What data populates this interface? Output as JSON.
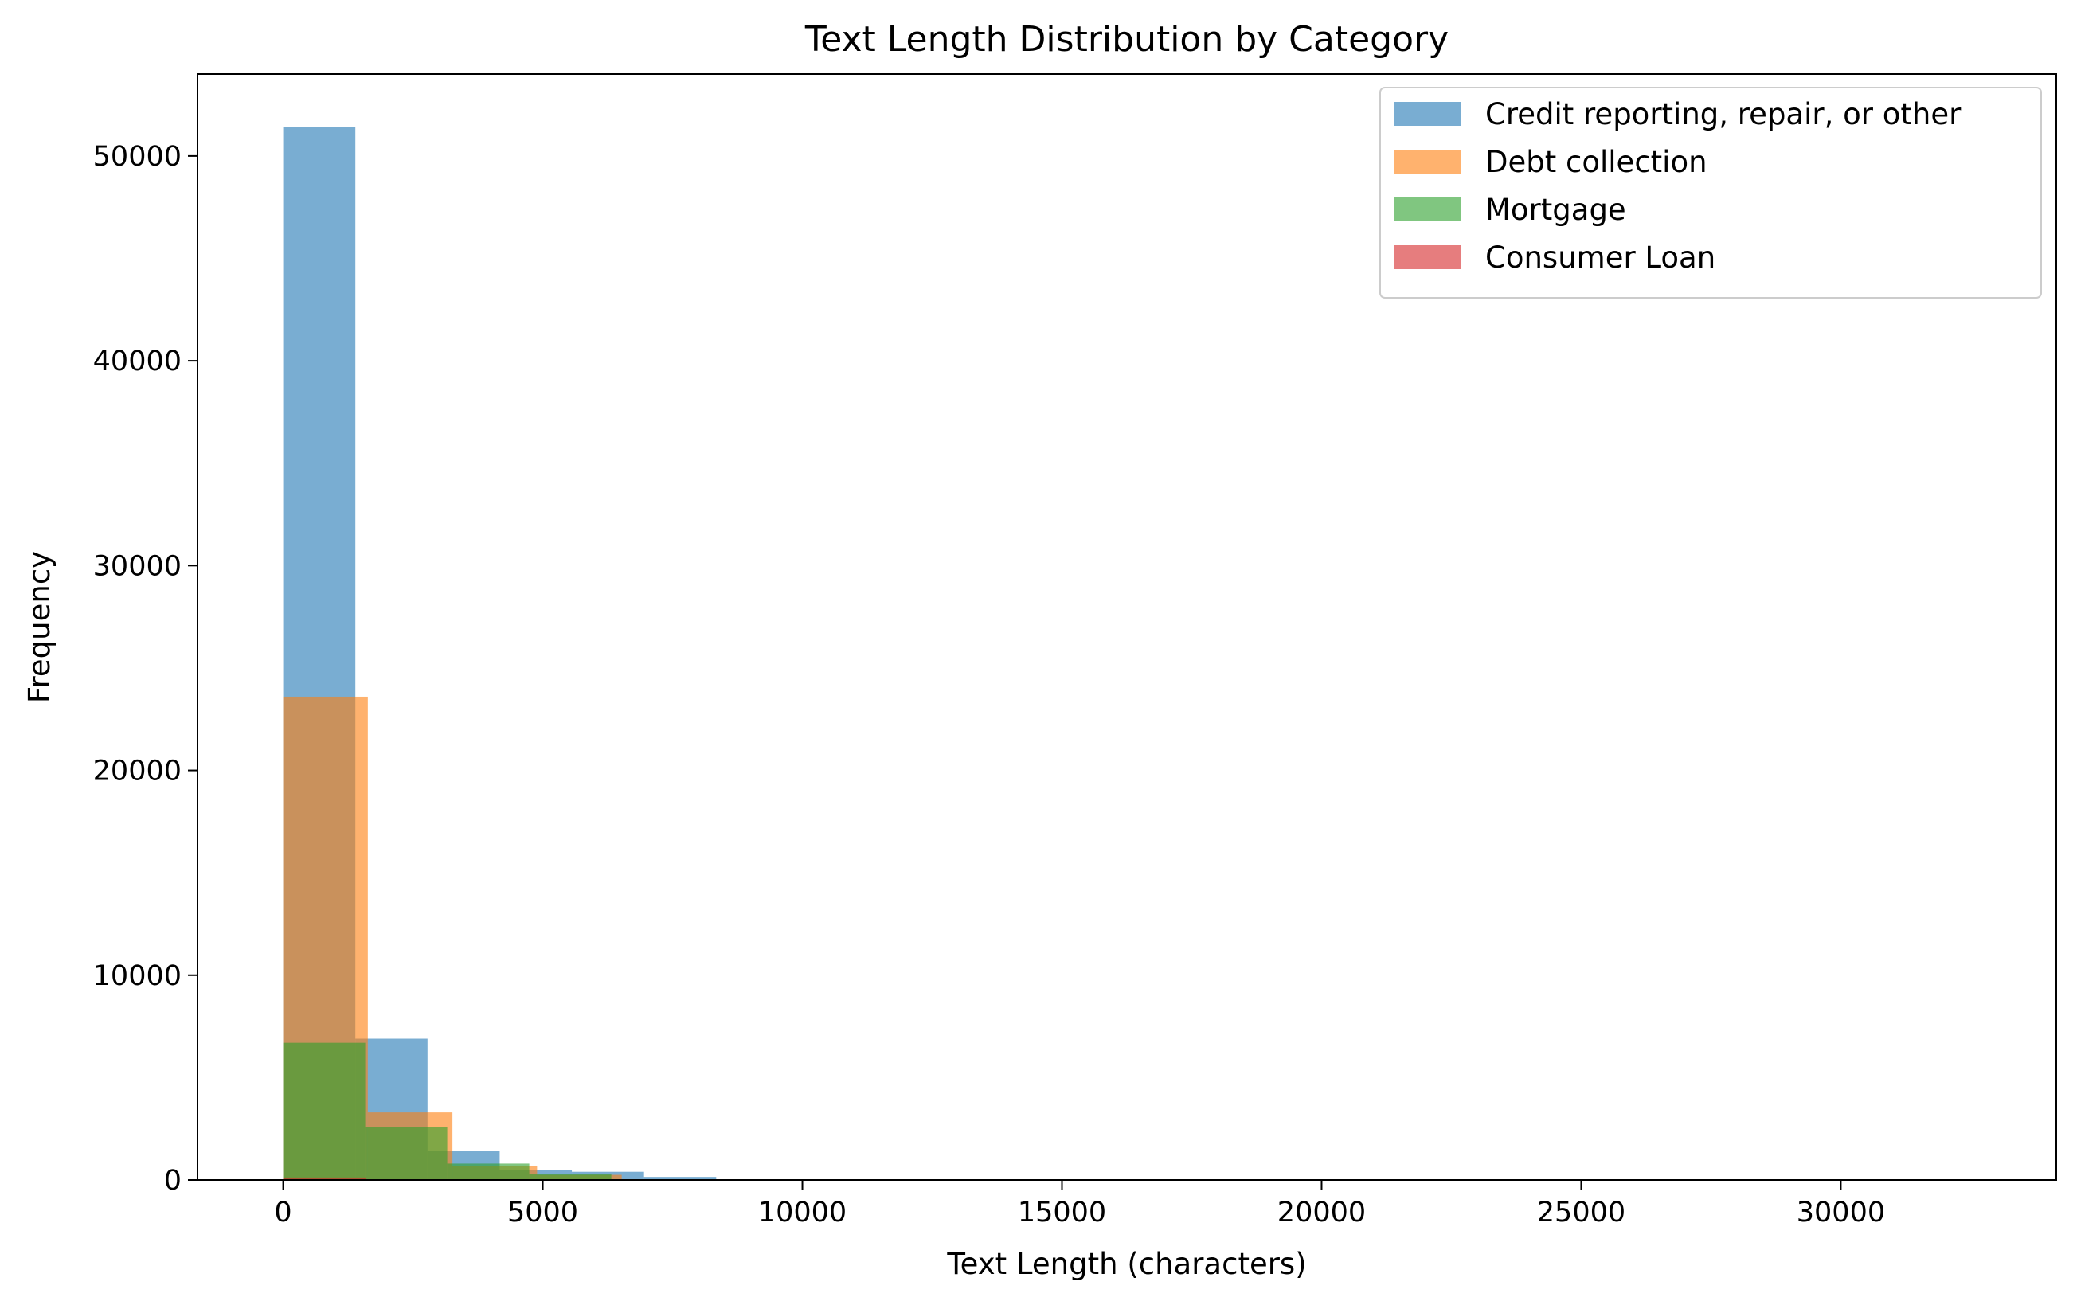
{
  "chart_data": {
    "type": "histogram",
    "title": "Text Length Distribution by Category",
    "xlabel": "Text Length (characters)",
    "ylabel": "Frequency",
    "xlim": [
      -1650,
      34150
    ],
    "ylim": [
      0,
      54000
    ],
    "xticks": [
      0,
      5000,
      10000,
      15000,
      20000,
      25000,
      30000
    ],
    "yticks": [
      0,
      10000,
      20000,
      30000,
      40000,
      50000
    ],
    "grid": false,
    "legend_position": "top-right",
    "bar_opacity": 0.6,
    "series": [
      {
        "name": "Credit reporting, repair, or other",
        "color": "#1f77b4",
        "bins": [
          {
            "x0": 0,
            "x1": 1390,
            "value": 51400
          },
          {
            "x0": 1390,
            "x1": 2780,
            "value": 6900
          },
          {
            "x0": 2780,
            "x1": 4170,
            "value": 1400
          },
          {
            "x0": 4170,
            "x1": 5560,
            "value": 500
          },
          {
            "x0": 5560,
            "x1": 6950,
            "value": 400
          },
          {
            "x0": 6950,
            "x1": 8340,
            "value": 150
          }
        ]
      },
      {
        "name": "Debt collection",
        "color": "#ff7f0e",
        "bins": [
          {
            "x0": 0,
            "x1": 1630,
            "value": 23600
          },
          {
            "x0": 1630,
            "x1": 3260,
            "value": 3300
          },
          {
            "x0": 3260,
            "x1": 4890,
            "value": 700
          },
          {
            "x0": 4890,
            "x1": 6520,
            "value": 250
          }
        ]
      },
      {
        "name": "Mortgage",
        "color": "#2ca02c",
        "bins": [
          {
            "x0": 0,
            "x1": 1580,
            "value": 6700
          },
          {
            "x0": 1580,
            "x1": 3160,
            "value": 2600
          },
          {
            "x0": 3160,
            "x1": 4740,
            "value": 800
          },
          {
            "x0": 4740,
            "x1": 6320,
            "value": 300
          }
        ]
      },
      {
        "name": "Consumer Loan",
        "color": "#d62728",
        "bins": [
          {
            "x0": 0,
            "x1": 1600,
            "value": 120
          },
          {
            "x0": 1600,
            "x1": 3200,
            "value": 30
          }
        ]
      }
    ]
  }
}
